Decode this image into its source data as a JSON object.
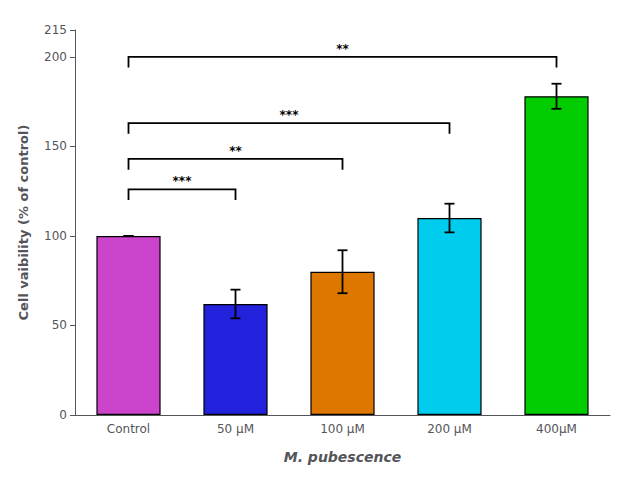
{
  "chart_data": {
    "type": "bar",
    "categories": [
      "Control",
      "50 μM",
      "100 μM",
      "200 μM",
      "400μM"
    ],
    "values": [
      100,
      62,
      80,
      110,
      178
    ],
    "errors": [
      0,
      8,
      12,
      8,
      7
    ],
    "colors": [
      "#CC44CC",
      "#2222DD",
      "#DD7700",
      "#00CCEE",
      "#00CC00"
    ],
    "xlabel": "M. pubescence",
    "ylabel": "Cell vaibility (% of control)",
    "ylim": [
      0,
      215
    ],
    "yticks": [
      0,
      50,
      100,
      150,
      200
    ],
    "grid": false,
    "annotations": [
      {
        "from": "Control",
        "to": "50 μM",
        "y": 126,
        "tick_down": 6,
        "label": "***"
      },
      {
        "from": "Control",
        "to": "100 μM",
        "y": 143,
        "tick_down": 6,
        "label": "**"
      },
      {
        "from": "Control",
        "to": "200 μM",
        "y": 163,
        "tick_down": 6,
        "label": "***"
      },
      {
        "from": "Control",
        "to": "400μM",
        "y": 200,
        "tick_down": 6,
        "label": "**"
      }
    ]
  }
}
